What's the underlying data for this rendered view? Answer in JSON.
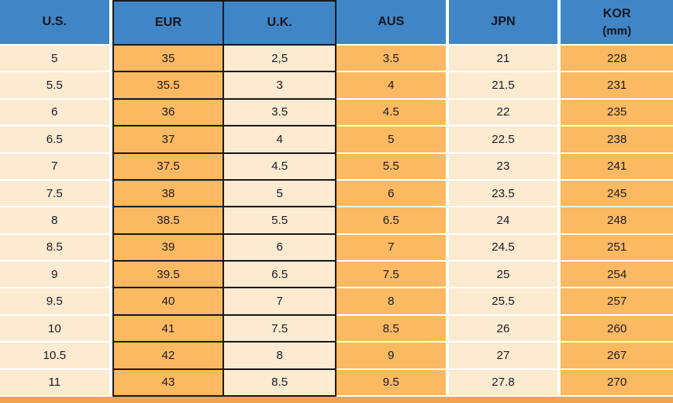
{
  "chart_data": {
    "type": "table",
    "columns": [
      {
        "label": "U.S."
      },
      {
        "label": "EUR"
      },
      {
        "label": "U.K."
      },
      {
        "label": "AUS"
      },
      {
        "label": "JPN"
      },
      {
        "label": "KOR",
        "sublabel": "(mm)"
      }
    ],
    "rows": [
      [
        "5",
        "35",
        "2,5",
        "3.5",
        "21",
        "228"
      ],
      [
        "5.5",
        "35.5",
        "3",
        "4",
        "21.5",
        "231"
      ],
      [
        "6",
        "36",
        "3.5",
        "4.5",
        "22",
        "235"
      ],
      [
        "6.5",
        "37",
        "4",
        "5",
        "22.5",
        "238"
      ],
      [
        "7",
        "37.5",
        "4.5",
        "5.5",
        "23",
        "241"
      ],
      [
        "7.5",
        "38",
        "5",
        "6",
        "23.5",
        "245"
      ],
      [
        "8",
        "38.5",
        "5.5",
        "6.5",
        "24",
        "248"
      ],
      [
        "8.5",
        "39",
        "6",
        "7",
        "24.5",
        "251"
      ],
      [
        "9",
        "39.5",
        "6.5",
        "7.5",
        "25",
        "254"
      ],
      [
        "9.5",
        "40",
        "7",
        "8",
        "25.5",
        "257"
      ],
      [
        "10",
        "41",
        "7.5",
        "8.5",
        "26",
        "260"
      ],
      [
        "10.5",
        "42",
        "8",
        "9",
        "27",
        "267"
      ],
      [
        "11",
        "43",
        "8.5",
        "9.5",
        "27.8",
        "270"
      ]
    ],
    "layout": {
      "grid": "boxed columns EUR and U.K. with black borders; other columns separated by white gaps",
      "legend_position": "none"
    }
  },
  "colors": {
    "header_blue": "#4086c6",
    "cell_orange": "#fbb962",
    "cell_cream": "#fcead1",
    "boxed_border_black": "#1a1a1a",
    "row_separator_white": "#ffffff",
    "bottom_strip_orange": "#f0a44f",
    "text_dark": "#1c1c24"
  }
}
